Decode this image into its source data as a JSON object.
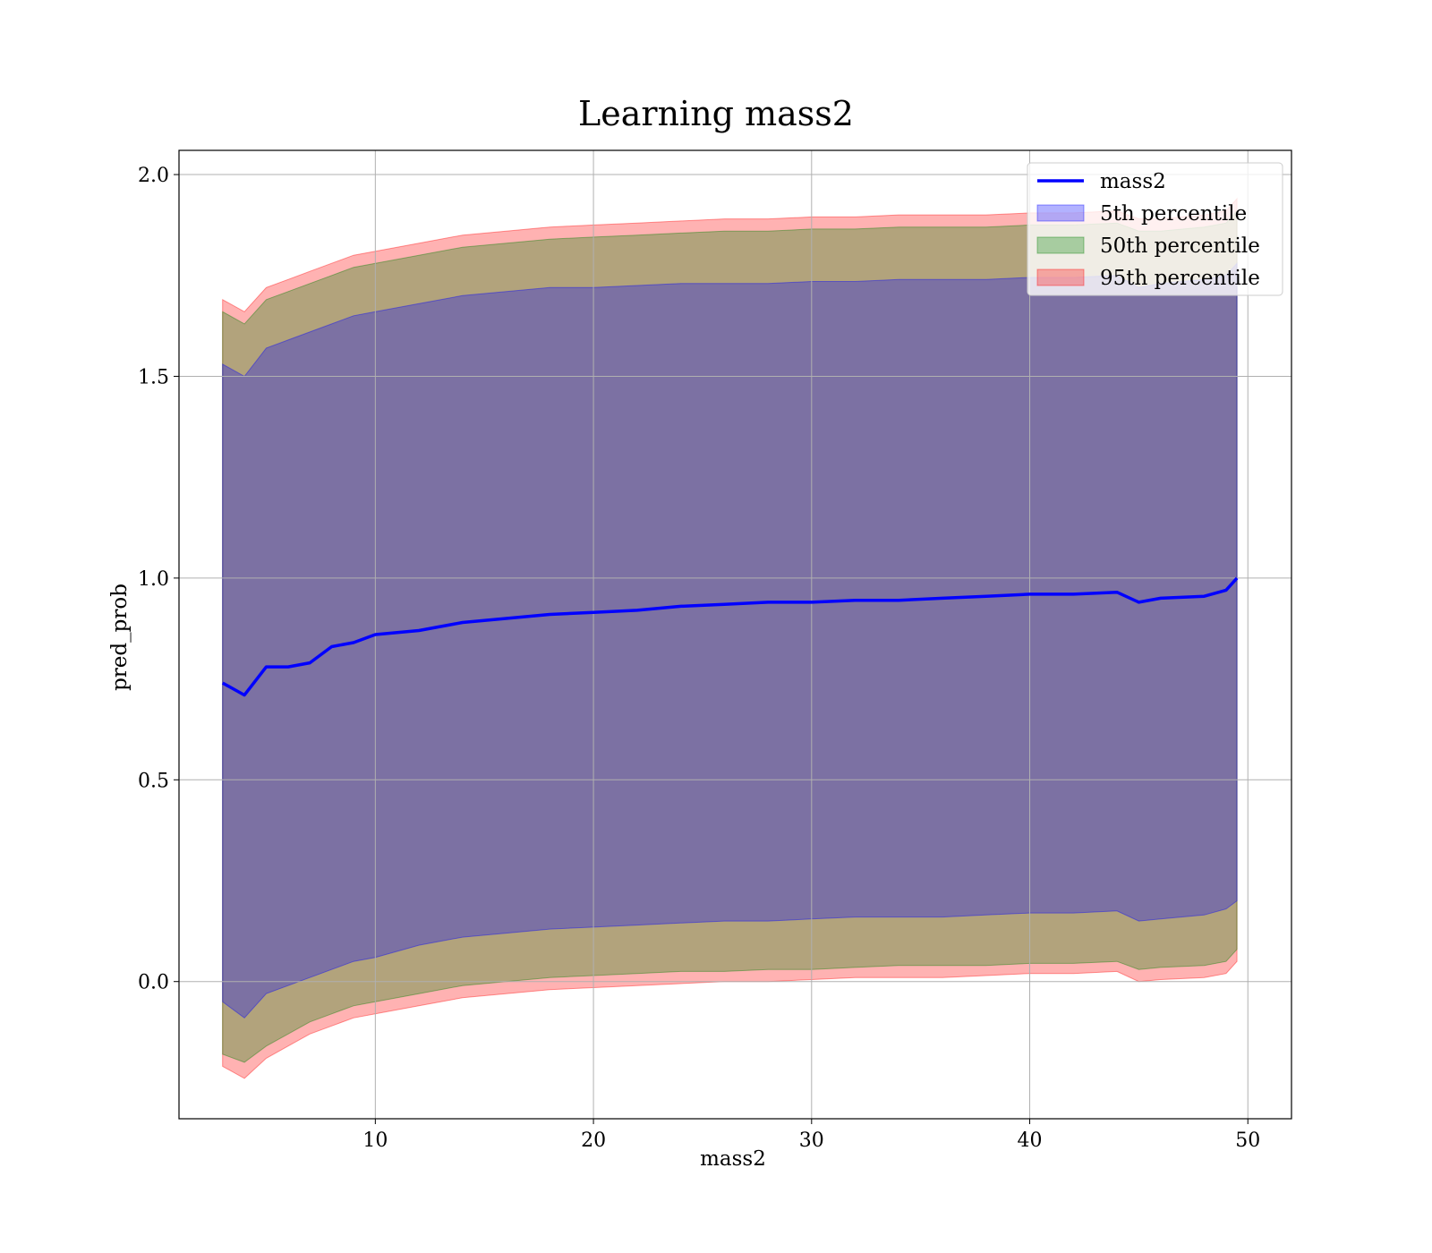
{
  "chart_data": {
    "type": "area",
    "title": "Learning mass2",
    "xlabel": "mass2",
    "ylabel": "pred_prob",
    "xlim": [
      1,
      52
    ],
    "ylim": [
      -0.34,
      2.06
    ],
    "xticks": [
      10,
      20,
      30,
      40,
      50
    ],
    "yticks": [
      0.0,
      0.5,
      1.0,
      1.5,
      2.0
    ],
    "xtick_labels": [
      "10",
      "20",
      "30",
      "40",
      "50"
    ],
    "ytick_labels": [
      "0.0",
      "0.5",
      "1.0",
      "1.5",
      "2.0"
    ],
    "grid": true,
    "legend_position": "top-right",
    "x": [
      3.0,
      4.0,
      5.0,
      6.0,
      7.0,
      8.0,
      9.0,
      10.0,
      12.0,
      14.0,
      16.0,
      18.0,
      20.0,
      22.0,
      24.0,
      26.0,
      28.0,
      30.0,
      32.0,
      34.0,
      36.0,
      38.0,
      40.0,
      42.0,
      44.0,
      45.0,
      46.0,
      48.0,
      49.0,
      49.5
    ],
    "series": [
      {
        "name": "mass2",
        "kind": "line",
        "color": "#0000ff",
        "values": [
          0.74,
          0.71,
          0.78,
          0.78,
          0.79,
          0.83,
          0.84,
          0.86,
          0.87,
          0.89,
          0.9,
          0.91,
          0.915,
          0.92,
          0.93,
          0.935,
          0.94,
          0.94,
          0.945,
          0.945,
          0.95,
          0.955,
          0.96,
          0.96,
          0.965,
          0.94,
          0.95,
          0.955,
          0.97,
          1.0
        ]
      },
      {
        "name": "5th percentile",
        "kind": "band",
        "color": "#0000ff",
        "lower": [
          -0.05,
          -0.09,
          -0.03,
          -0.01,
          0.01,
          0.03,
          0.05,
          0.06,
          0.09,
          0.11,
          0.12,
          0.13,
          0.135,
          0.14,
          0.145,
          0.15,
          0.15,
          0.155,
          0.16,
          0.16,
          0.16,
          0.165,
          0.17,
          0.17,
          0.175,
          0.15,
          0.155,
          0.165,
          0.18,
          0.2
        ],
        "upper": [
          1.53,
          1.5,
          1.57,
          1.59,
          1.61,
          1.63,
          1.65,
          1.66,
          1.68,
          1.7,
          1.71,
          1.72,
          1.72,
          1.725,
          1.73,
          1.73,
          1.73,
          1.735,
          1.735,
          1.74,
          1.74,
          1.74,
          1.745,
          1.745,
          1.75,
          1.72,
          1.73,
          1.74,
          1.75,
          1.78
        ]
      },
      {
        "name": "50th percentile",
        "kind": "band",
        "color": "#008000",
        "lower": [
          -0.18,
          -0.2,
          -0.16,
          -0.13,
          -0.1,
          -0.08,
          -0.06,
          -0.05,
          -0.03,
          -0.01,
          0.0,
          0.01,
          0.015,
          0.02,
          0.025,
          0.025,
          0.03,
          0.03,
          0.035,
          0.04,
          0.04,
          0.04,
          0.045,
          0.045,
          0.05,
          0.03,
          0.035,
          0.04,
          0.05,
          0.08
        ],
        "upper": [
          1.66,
          1.63,
          1.69,
          1.71,
          1.73,
          1.75,
          1.77,
          1.78,
          1.8,
          1.82,
          1.83,
          1.84,
          1.845,
          1.85,
          1.855,
          1.86,
          1.86,
          1.865,
          1.865,
          1.87,
          1.87,
          1.87,
          1.875,
          1.875,
          1.88,
          1.86,
          1.86,
          1.87,
          1.88,
          1.91
        ]
      },
      {
        "name": "95th percentile",
        "kind": "band",
        "color": "#ff0000",
        "lower": [
          -0.21,
          -0.24,
          -0.19,
          -0.16,
          -0.13,
          -0.11,
          -0.09,
          -0.08,
          -0.06,
          -0.04,
          -0.03,
          -0.02,
          -0.015,
          -0.01,
          -0.005,
          0.0,
          0.0,
          0.005,
          0.01,
          0.01,
          0.01,
          0.015,
          0.02,
          0.02,
          0.025,
          0.0,
          0.005,
          0.01,
          0.02,
          0.05
        ],
        "upper": [
          1.69,
          1.66,
          1.72,
          1.74,
          1.76,
          1.78,
          1.8,
          1.81,
          1.83,
          1.85,
          1.86,
          1.87,
          1.875,
          1.88,
          1.885,
          1.89,
          1.89,
          1.895,
          1.895,
          1.9,
          1.9,
          1.9,
          1.905,
          1.905,
          1.91,
          1.89,
          1.89,
          1.9,
          1.91,
          1.94
        ]
      }
    ]
  }
}
